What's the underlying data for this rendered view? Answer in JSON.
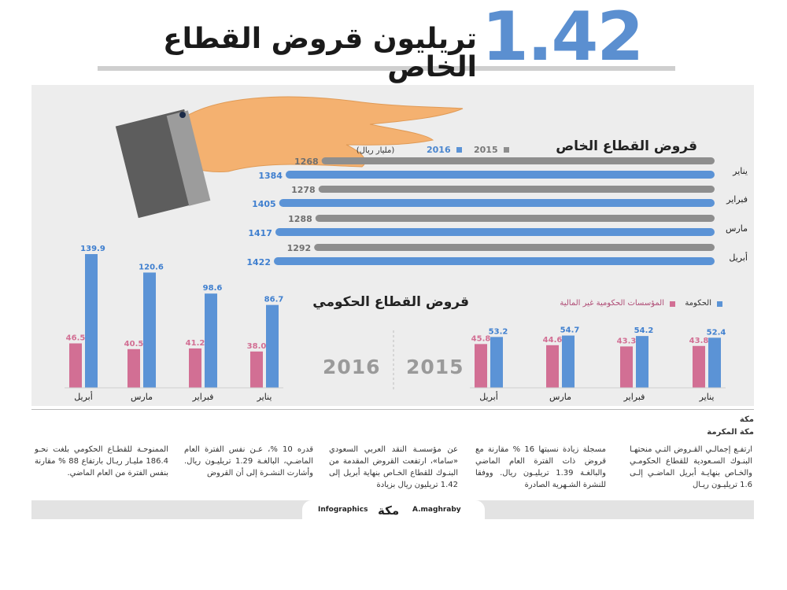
{
  "header": {
    "big_number": "1.42",
    "title": "تريليون قروض القطاع الخاص"
  },
  "colors": {
    "blue": "#5b93d6",
    "gray": "#8e8e8e",
    "pink": "#d26f94",
    "panel": "#ededed"
  },
  "chart_data": [
    {
      "type": "bar",
      "orientation": "horizontal",
      "title": "قروض القطاع الخاص",
      "unit": "(مليار ريال)",
      "categories": [
        "يناير",
        "فبراير",
        "مارس",
        "أبريل"
      ],
      "series": [
        {
          "name": "2015",
          "values": [
            1268,
            1278,
            1288,
            1292
          ]
        },
        {
          "name": "2016",
          "values": [
            1384,
            1405,
            1417,
            1422
          ]
        }
      ]
    },
    {
      "type": "bar",
      "title": "قروض القطاع الحكومي",
      "panel_year": "2015",
      "categories": [
        "يناير",
        "فبراير",
        "مارس",
        "أبريل"
      ],
      "series": [
        {
          "name": "الحكومة",
          "values": [
            52.4,
            54.2,
            54.7,
            53.2
          ]
        },
        {
          "name": "المؤسسات الحكومية غير المالية",
          "values": [
            43.8,
            43.3,
            44.6,
            45.8
          ]
        }
      ],
      "ylim": [
        0,
        150
      ]
    },
    {
      "type": "bar",
      "title": "قروض القطاع الحكومي",
      "panel_year": "2016",
      "categories": [
        "يناير",
        "فبراير",
        "مارس",
        "أبريل"
      ],
      "series": [
        {
          "name": "الحكومة",
          "values": [
            86.7,
            98.6,
            120.6,
            139.9
          ]
        },
        {
          "name": "المؤسسات الحكومية غير المالية",
          "values": [
            38.0,
            41.2,
            40.5,
            46.5
          ]
        }
      ],
      "ylim": [
        0,
        150
      ]
    }
  ],
  "legend_private": {
    "y2015": "2015",
    "y2016": "2016",
    "unit": "(مليار ريال)"
  },
  "legend_gov": {
    "gov": "الحكومة",
    "nonfin": "المؤسسات الحكومية غير المالية"
  },
  "article": {
    "city1": "مكة",
    "city2": "مكة المكرمة",
    "col1": "ارتفـع إجمالـي القـروض التـي منحتهـا البنـوك السـعودية للقطاع الحكومـي والخـاص بنهايـة أبريل الماضـي إلـى 1.6 تريليـون ريـال",
    "col2": "مسجلة زيادة نسبتها 16 % مقارنة مع قروض ذات الفترة العام الماضي والبالغـة 1.39 تريليـون ريال. ووفقا للنشرة الشـهرية الصادرة",
    "col3": "عن مؤسسـة النقد العربي السعودي «ساما»، ارتفعت القروض المقدمة من البنـوك للقطاع الخـاص بنهاية أبريل إلى 1.42 تريليون ريال بزيادة",
    "col4": "قدره 10 %، عـن نفس الفترة العام الماضـي، البالغـة 1.29 تريليـون ريال. وأشارت النشـرة إلى أن القروض",
    "col5": "الممنوحـة للقطـاع الحكومي بلغت نحـو 186.4 مليـار ريـال بارتفاع 88 % مقارنة بنفس الفترة من العام الماضي."
  },
  "footer": {
    "infographics": "Infographics",
    "logo": "مكة",
    "author": "A.maghraby"
  }
}
